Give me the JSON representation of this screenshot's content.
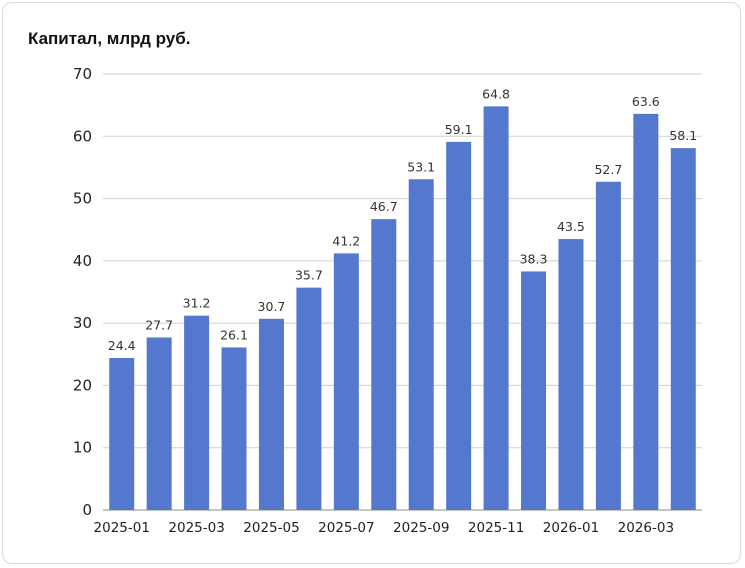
{
  "chart_data": {
    "type": "bar",
    "title": "Капитал, млрд руб.",
    "xlabel": "",
    "ylabel": "",
    "ylim": [
      0,
      70
    ],
    "yticks": [
      0,
      10,
      20,
      30,
      40,
      50,
      60,
      70
    ],
    "grid": true,
    "legend": "none",
    "bar_color": "#5578cf",
    "categories": [
      "2025-01",
      "2025-02",
      "2025-03",
      "2025-04",
      "2025-05",
      "2025-06",
      "2025-07",
      "2025-08",
      "2025-09",
      "2025-10",
      "2025-11",
      "2025-12",
      "2026-01",
      "2026-02",
      "2026-03",
      "2026-04"
    ],
    "x_tick_labels": [
      "2025-01",
      "2025-03",
      "2025-05",
      "2025-07",
      "2025-09",
      "2025-11",
      "2026-01",
      "2026-03"
    ],
    "values": [
      24.4,
      27.7,
      31.2,
      26.1,
      30.7,
      35.7,
      41.2,
      46.7,
      53.1,
      59.1,
      64.8,
      38.3,
      43.5,
      52.7,
      63.6,
      58.1
    ],
    "data_labels": [
      "24.4",
      "27.7",
      "31.2",
      "26.1",
      "30.7",
      "35.7",
      "41.2",
      "46.7",
      "53.1",
      "59.1",
      "64.8",
      "38.3",
      "43.5",
      "52.7",
      "63.6",
      "58.1"
    ]
  }
}
